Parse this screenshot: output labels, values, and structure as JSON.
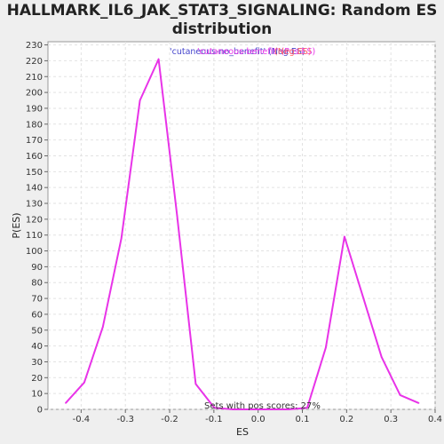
{
  "chart_data": {
    "type": "line",
    "title_line1": "HALLMARK_IL6_JAK_STAT3_SIGNALING: Random ES",
    "title_line2": "distribution",
    "xlabel": "ES",
    "ylabel": "P(ES)",
    "xlim": [
      -0.475,
      0.4
    ],
    "ylim": [
      0,
      232
    ],
    "xticks": [
      -0.4,
      -0.3,
      -0.2,
      -0.1,
      0.0,
      0.1,
      0.2,
      0.3,
      0.4
    ],
    "xtick_labels": [
      "-0.4",
      "-0.3",
      "-0.2",
      "-0.1",
      "0.0",
      "0.1",
      "0.2",
      "0.3",
      "0.4"
    ],
    "yticks": [
      0,
      10,
      20,
      30,
      40,
      50,
      60,
      70,
      80,
      90,
      100,
      110,
      120,
      130,
      140,
      150,
      160,
      170,
      180,
      190,
      200,
      210,
      220,
      230
    ],
    "grid": true,
    "series": [
      {
        "color": "#e833e8",
        "x": [
          -0.435,
          -0.393,
          -0.351,
          -0.309,
          -0.267,
          -0.225,
          -0.183,
          -0.141,
          -0.099,
          -0.057,
          -0.015,
          0.027,
          0.069,
          0.111,
          0.153,
          0.195,
          0.237,
          0.279,
          0.321,
          0.363
        ],
        "y": [
          4,
          17,
          52,
          108,
          195,
          221,
          122,
          16,
          1,
          0,
          0,
          0,
          0,
          1,
          39,
          109,
          71,
          33,
          9,
          4
        ]
      }
    ],
    "legend": {
      "items": [
        {
          "text": "'cutaneous-no_benefit' (Neg ES)",
          "color": "#4444cc"
        },
        {
          "text": "'cutaneous-benefit' (Pos ES)",
          "color": "#e833e8"
        },
        {
          "text": "(Neg ES)",
          "color": "#ff6666"
        }
      ]
    },
    "annotation": "Sets with pos scores: 27%"
  }
}
